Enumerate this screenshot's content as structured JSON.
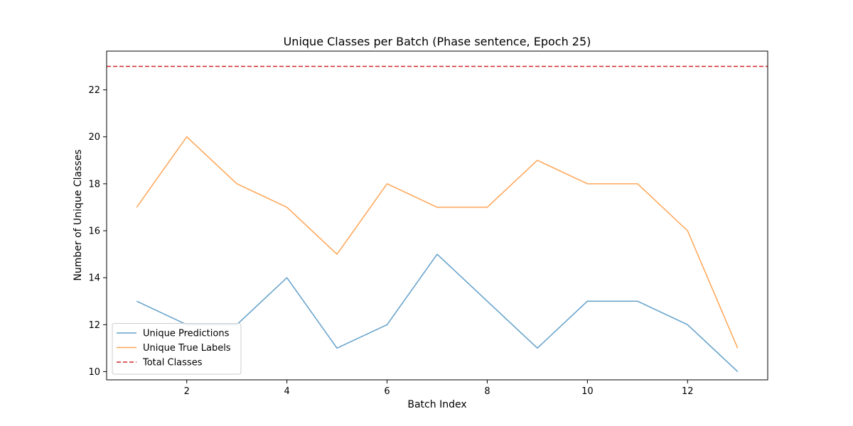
{
  "chart_data": {
    "type": "line",
    "title": "Unique Classes per Batch (Phase sentence, Epoch 25)",
    "xlabel": "Batch Index",
    "ylabel": "Number of Unique Classes",
    "x": [
      1,
      2,
      3,
      4,
      5,
      6,
      7,
      8,
      9,
      10,
      11,
      12,
      13
    ],
    "series": [
      {
        "name": "Unique Predictions",
        "values": [
          13,
          12,
          12,
          14,
          11,
          12,
          15,
          13,
          11,
          13,
          13,
          12,
          10
        ],
        "color": "#1f77b4",
        "style": "solid"
      },
      {
        "name": "Unique True Labels",
        "values": [
          17,
          20,
          18,
          17,
          15,
          18,
          17,
          17,
          19,
          18,
          18,
          16,
          11
        ],
        "color": "#ff7f0e",
        "style": "solid"
      }
    ],
    "reference_lines": [
      {
        "name": "Total Classes",
        "y": 23,
        "color": "#d62728",
        "style": "dashed"
      }
    ],
    "xlim": [
      0.4,
      13.6
    ],
    "ylim": [
      9.65,
      23.65
    ],
    "xticks": [
      2,
      4,
      6,
      8,
      10,
      12
    ],
    "yticks": [
      10,
      12,
      14,
      16,
      18,
      20,
      22
    ],
    "legend_position": "lower-left",
    "grid": false
  }
}
